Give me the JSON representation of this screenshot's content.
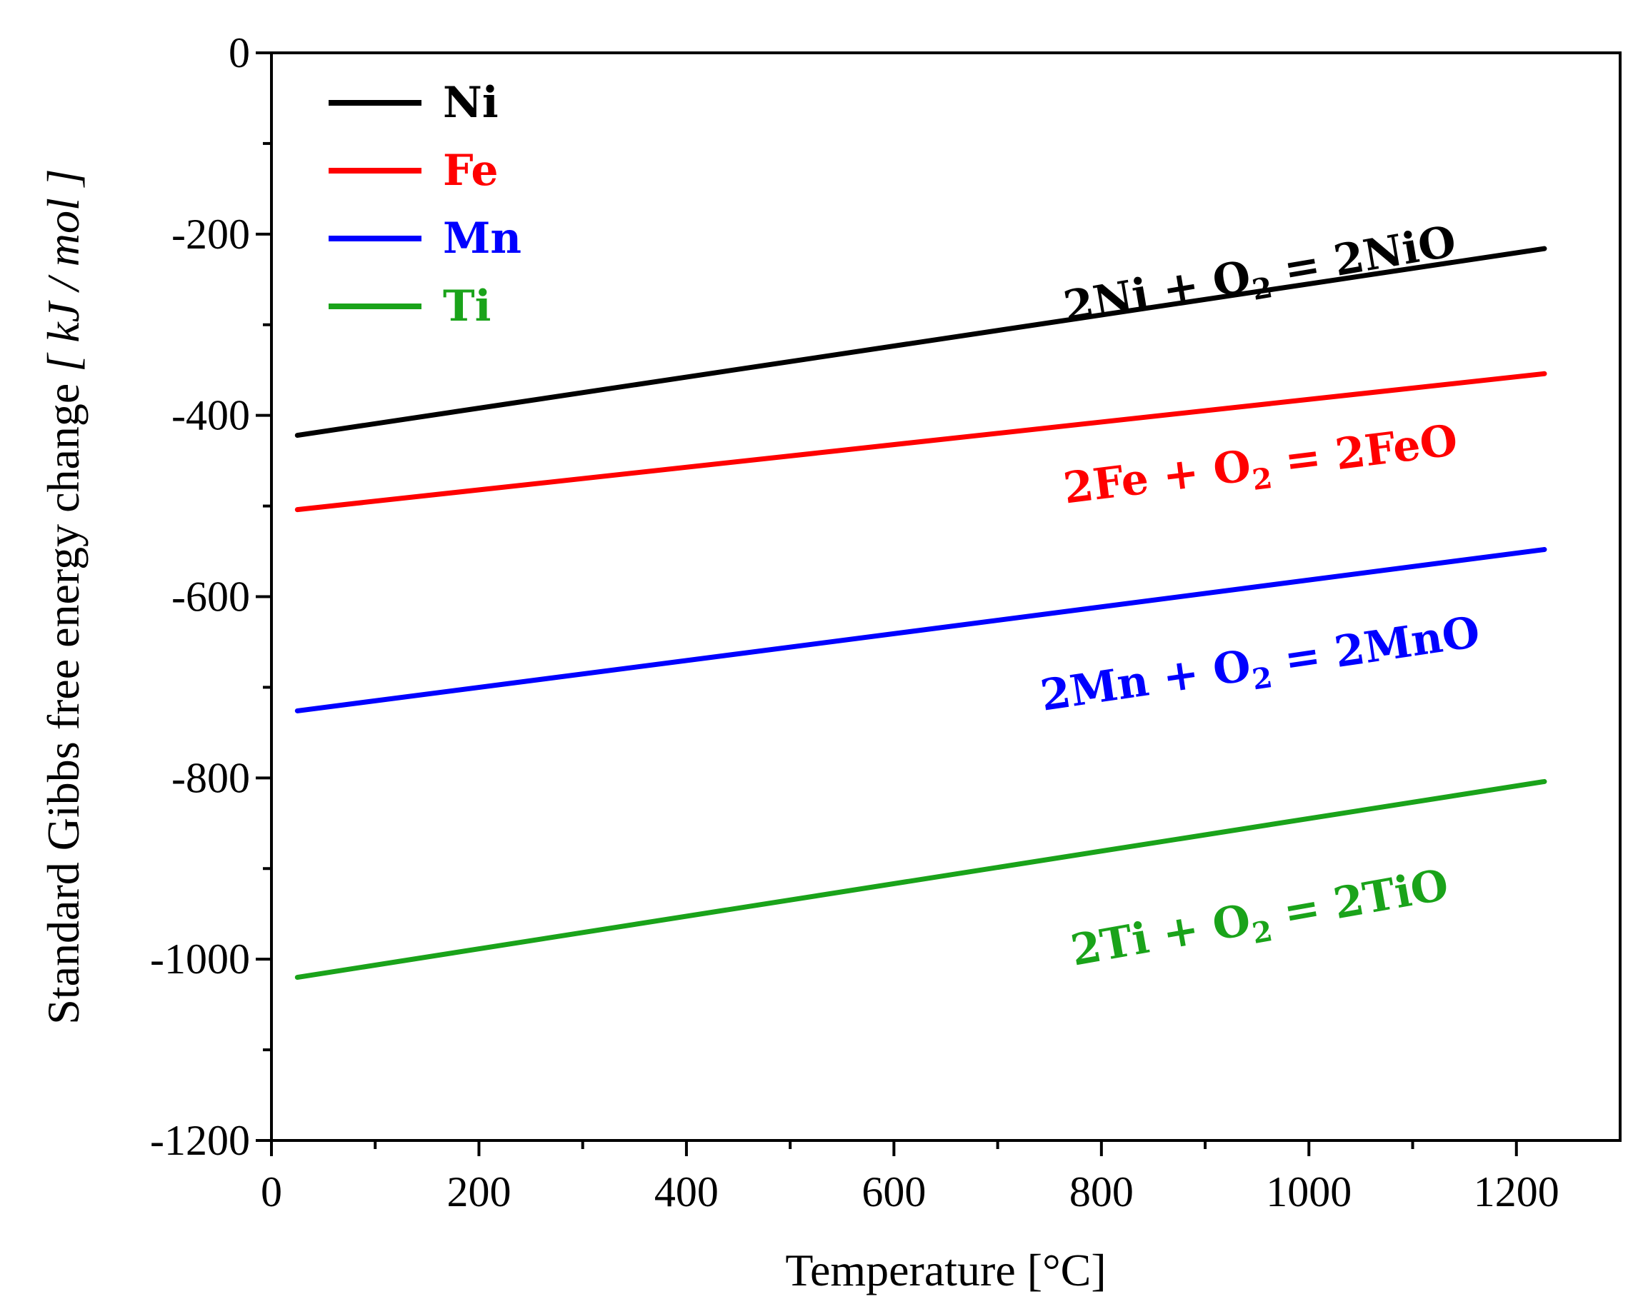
{
  "chart_data": {
    "type": "line",
    "title": "",
    "xlabel": "Temperature [°C]",
    "ylabel_text": "Standard Gibbs free energy change ",
    "ylabel_unit": "[ kJ / mol ]",
    "xlim": [
      0,
      1300
    ],
    "ylim": [
      -1200,
      0
    ],
    "x_ticks": [
      0,
      200,
      400,
      600,
      800,
      1000,
      1200
    ],
    "x_tick_labels": [
      "0",
      "200",
      "400",
      "600",
      "800",
      "1000",
      "1200"
    ],
    "x_minor_step": 100,
    "y_ticks": [
      0,
      -200,
      -400,
      -600,
      -800,
      -1000,
      -1200
    ],
    "y_tick_labels": [
      "0",
      "-200",
      "-400",
      "-600",
      "-800",
      "-1000",
      "-1200"
    ],
    "y_minor_step": 100,
    "grid": false,
    "legend_position": "top-left",
    "series": [
      {
        "name": "Ni",
        "color": "#000000",
        "x": [
          25,
          1227
        ],
        "y": [
          -422,
          -216
        ],
        "annotation": {
          "pre": "2Ni + O",
          "sub": "2",
          "post": " = 2NiO",
          "x": 955,
          "y": -260,
          "angle": -9.7
        }
      },
      {
        "name": "Fe",
        "color": "#ff0000",
        "x": [
          25,
          1227
        ],
        "y": [
          -504,
          -354
        ],
        "annotation": {
          "pre": "2Fe + O",
          "sub": "2",
          "post": " = 2FeO",
          "x": 955,
          "y": -470,
          "angle": -7.1
        }
      },
      {
        "name": "Mn",
        "color": "#0000ff",
        "x": [
          25,
          1227
        ],
        "y": [
          -726,
          -548
        ],
        "annotation": {
          "pre": "2Mn + O",
          "sub": "2",
          "post": " = 2MnO",
          "x": 955,
          "y": -690,
          "angle": -8.4
        }
      },
      {
        "name": "Ti",
        "color": "#1aa31a",
        "x": [
          25,
          1227
        ],
        "y": [
          -1020,
          -804
        ],
        "annotation": {
          "pre": "2Ti + O",
          "sub": "2",
          "post": " = 2TiO",
          "x": 955,
          "y": -970,
          "angle": -10.1
        }
      }
    ]
  }
}
